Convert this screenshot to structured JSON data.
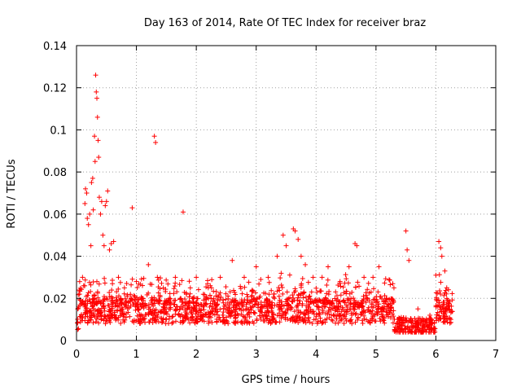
{
  "chart_data": {
    "type": "scatter",
    "title": "Day 163 of 2014, Rate Of TEC Index for receiver braz",
    "xlabel": "GPS time / hours",
    "ylabel": "ROTI / TECUs",
    "xlim": [
      0,
      7
    ],
    "ylim": [
      0,
      0.14
    ],
    "x_ticks": [
      "0",
      "1",
      "2",
      "3",
      "4",
      "5",
      "6",
      "7"
    ],
    "y_ticks": [
      "0",
      "0.02",
      "0.04",
      "0.06",
      "0.08",
      "0.1",
      "0.12",
      "0.14"
    ],
    "grid": true,
    "marker": "+",
    "marker_color": "#ff0000",
    "series": [
      {
        "name": "ROTI",
        "notes": "Dense band of points between ~0.005 and ~0.03 TECUs spanning 0 to ~6.3 h; representative points below",
        "points": [
          [
            0.02,
            0.015
          ],
          [
            0.05,
            0.022
          ],
          [
            0.08,
            0.012
          ],
          [
            0.1,
            0.03
          ],
          [
            0.12,
            0.026
          ],
          [
            0.14,
            0.065
          ],
          [
            0.15,
            0.072
          ],
          [
            0.17,
            0.07
          ],
          [
            0.18,
            0.058
          ],
          [
            0.2,
            0.055
          ],
          [
            0.22,
            0.06
          ],
          [
            0.24,
            0.045
          ],
          [
            0.25,
            0.075
          ],
          [
            0.27,
            0.077
          ],
          [
            0.28,
            0.062
          ],
          [
            0.3,
            0.097
          ],
          [
            0.31,
            0.085
          ],
          [
            0.32,
            0.126
          ],
          [
            0.33,
            0.118
          ],
          [
            0.34,
            0.115
          ],
          [
            0.35,
            0.106
          ],
          [
            0.36,
            0.095
          ],
          [
            0.37,
            0.087
          ],
          [
            0.38,
            0.068
          ],
          [
            0.4,
            0.06
          ],
          [
            0.42,
            0.066
          ],
          [
            0.44,
            0.05
          ],
          [
            0.46,
            0.045
          ],
          [
            0.48,
            0.064
          ],
          [
            0.5,
            0.066
          ],
          [
            0.52,
            0.071
          ],
          [
            0.55,
            0.043
          ],
          [
            0.58,
            0.046
          ],
          [
            0.62,
            0.047
          ],
          [
            0.7,
            0.03
          ],
          [
            0.8,
            0.025
          ],
          [
            0.93,
            0.063
          ],
          [
            1.0,
            0.028
          ],
          [
            1.1,
            0.02
          ],
          [
            1.2,
            0.036
          ],
          [
            1.3,
            0.097
          ],
          [
            1.32,
            0.094
          ],
          [
            1.35,
            0.03
          ],
          [
            1.45,
            0.025
          ],
          [
            1.55,
            0.02
          ],
          [
            1.65,
            0.03
          ],
          [
            1.78,
            0.061
          ],
          [
            1.9,
            0.025
          ],
          [
            2.0,
            0.03
          ],
          [
            2.2,
            0.025
          ],
          [
            2.4,
            0.03
          ],
          [
            2.6,
            0.038
          ],
          [
            2.8,
            0.03
          ],
          [
            3.0,
            0.035
          ],
          [
            3.2,
            0.03
          ],
          [
            3.35,
            0.04
          ],
          [
            3.45,
            0.05
          ],
          [
            3.5,
            0.045
          ],
          [
            3.62,
            0.053
          ],
          [
            3.65,
            0.052
          ],
          [
            3.7,
            0.048
          ],
          [
            3.75,
            0.04
          ],
          [
            3.82,
            0.036
          ],
          [
            3.95,
            0.03
          ],
          [
            4.1,
            0.03
          ],
          [
            4.2,
            0.035
          ],
          [
            4.4,
            0.028
          ],
          [
            4.55,
            0.035
          ],
          [
            4.65,
            0.046
          ],
          [
            4.68,
            0.045
          ],
          [
            4.8,
            0.03
          ],
          [
            4.95,
            0.03
          ],
          [
            5.05,
            0.035
          ],
          [
            5.3,
            0.025
          ],
          [
            5.5,
            0.052
          ],
          [
            5.52,
            0.043
          ],
          [
            5.55,
            0.038
          ],
          [
            5.7,
            0.015
          ],
          [
            5.9,
            0.012
          ],
          [
            6.0,
            0.031
          ],
          [
            6.05,
            0.047
          ],
          [
            6.08,
            0.044
          ],
          [
            6.1,
            0.04
          ],
          [
            6.15,
            0.033
          ],
          [
            6.2,
            0.015
          ],
          [
            6.25,
            0.01
          ]
        ]
      }
    ]
  }
}
